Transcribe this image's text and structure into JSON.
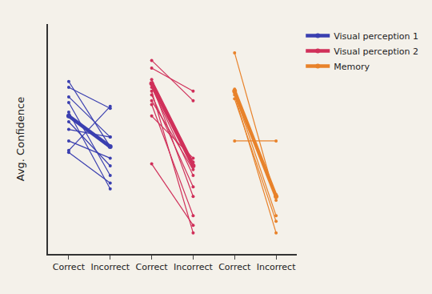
{
  "chart_data": {
    "type": "line",
    "y_label": "Avg. Confidence",
    "categories": [
      "Correct",
      "Incorrect",
      "Correct",
      "Incorrect",
      "Correct",
      "Incorrect"
    ],
    "ylim": [
      0,
      12
    ],
    "tick_labels": "x",
    "grid": false,
    "legend": "top right",
    "marker": "circle",
    "series": [
      {
        "name": "Visual perception 1",
        "color": "#3a3fb0",
        "values": [
          7.2,
          5.6,
          null,
          null,
          null,
          null
        ],
        "subjects": [
          [
            9.0,
            5.6,
            null,
            null,
            null,
            null
          ],
          [
            8.7,
            7.6,
            null,
            null,
            null,
            null
          ],
          [
            8.2,
            6.1,
            null,
            null,
            null,
            null
          ],
          [
            7.9,
            4.1,
            null,
            null,
            null,
            null
          ],
          [
            7.4,
            3.4,
            null,
            null,
            null,
            null
          ],
          [
            6.9,
            4.6,
            null,
            null,
            null,
            null
          ],
          [
            6.5,
            6.1,
            null,
            null,
            null,
            null
          ],
          [
            5.9,
            5.0,
            null,
            null,
            null,
            null
          ],
          [
            5.4,
            7.7,
            null,
            null,
            null,
            null
          ],
          [
            5.3,
            3.7,
            null,
            null,
            null,
            null
          ]
        ]
      },
      {
        "name": "Visual perception 2",
        "color": "#d0305a",
        "values": [
          null,
          null,
          8.9,
          4.6,
          null,
          null
        ],
        "subjects": [
          [
            null,
            null,
            10.1,
            8.0,
            null,
            null
          ],
          [
            null,
            null,
            9.7,
            8.5,
            null,
            null
          ],
          [
            null,
            null,
            9.1,
            4.8,
            null,
            null
          ],
          [
            null,
            null,
            8.9,
            3.0,
            null,
            null
          ],
          [
            null,
            null,
            8.7,
            4.1,
            null,
            null
          ],
          [
            null,
            null,
            8.5,
            1.1,
            null,
            null
          ],
          [
            null,
            null,
            8.3,
            3.5,
            null,
            null
          ],
          [
            null,
            null,
            8.0,
            4.4,
            null,
            null
          ],
          [
            null,
            null,
            7.8,
            2.0,
            null,
            null
          ],
          [
            null,
            null,
            7.2,
            5.0,
            null,
            null
          ],
          [
            null,
            null,
            4.7,
            1.5,
            null,
            null
          ]
        ]
      },
      {
        "name": "Memory",
        "color": "#e8822a",
        "values": [
          null,
          null,
          null,
          null,
          8.5,
          3.0
        ],
        "subjects": [
          [
            null,
            null,
            null,
            null,
            10.5,
            2.8
          ],
          [
            null,
            null,
            null,
            null,
            8.6,
            3.1
          ],
          [
            null,
            null,
            null,
            null,
            8.4,
            2.0
          ],
          [
            null,
            null,
            null,
            null,
            8.3,
            1.1
          ],
          [
            null,
            null,
            null,
            null,
            8.1,
            1.7
          ],
          [
            null,
            null,
            null,
            null,
            5.9,
            5.9
          ]
        ]
      }
    ]
  }
}
